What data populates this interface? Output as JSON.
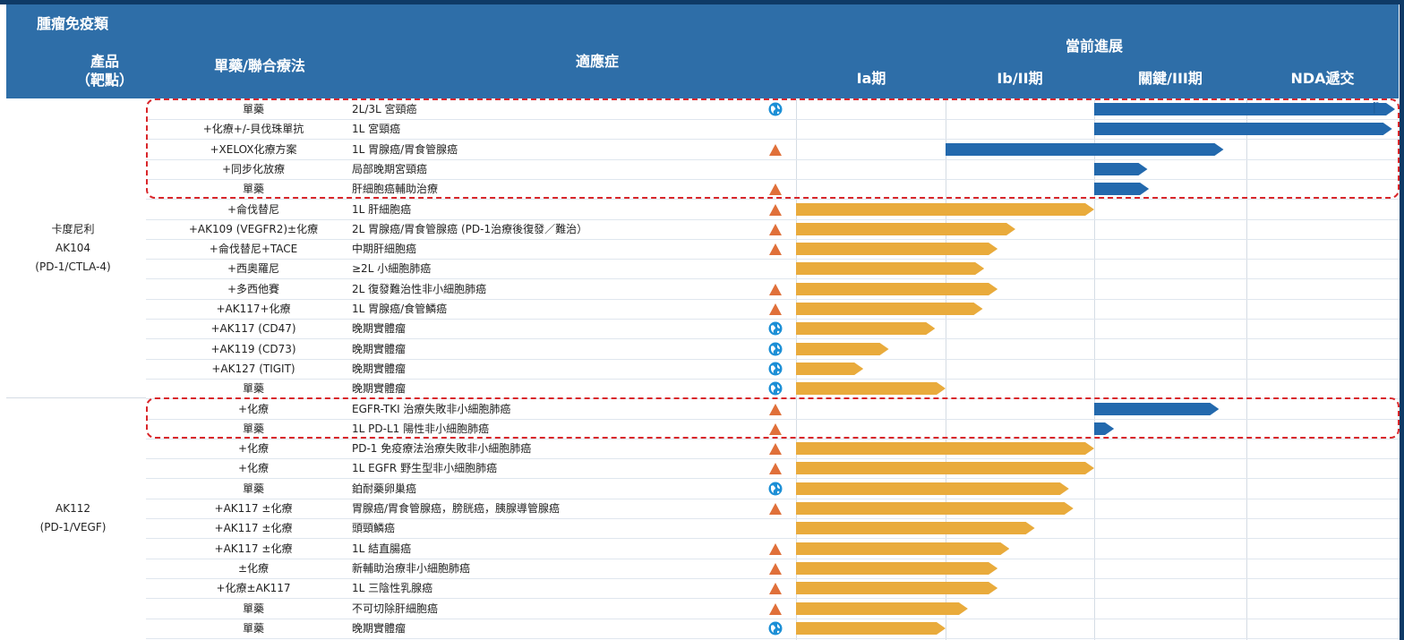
{
  "header": {
    "title": "腫瘤免疫類",
    "col_product": "產品",
    "col_product_sub": "（靶點）",
    "col_therapy": "單藥/聯合療法",
    "col_indication": "適應症",
    "col_progress": "當前進展",
    "phases": [
      "Ia期",
      "Ib/II期",
      "關鍵/III期",
      "NDA遞交"
    ]
  },
  "colors": {
    "header_bg": "#2e6ea8",
    "bar_blue": "#2369ad",
    "bar_gold": "#e9ab3c",
    "triangle": "#e0703a",
    "highlight": "#d9262a"
  },
  "products": [
    {
      "name": "卡度尼利",
      "code": "AK104",
      "target": "(PD-1/CTLA-4)"
    },
    {
      "name": "",
      "code": "AK112",
      "target": "(PD-1/VEGF)"
    }
  ],
  "rows": [
    {
      "therapy": "單藥",
      "indication": "2L/3L 宮頸癌",
      "icon": "globe-icon",
      "progress": 4.0,
      "color": "blue",
      "flag": true
    },
    {
      "therapy": "+化療+/-貝伐珠單抗",
      "indication": "1L 宮頸癌",
      "icon": "",
      "progress": 3.98,
      "color": "blue"
    },
    {
      "therapy": "+XELOX化療方案",
      "indication": "1L 胃腺癌/胃食管腺癌",
      "icon": "triangle-icon",
      "progress": 2.85,
      "color": "blue"
    },
    {
      "therapy": "+同步化放療",
      "indication": "局部晚期宮頸癌",
      "icon": "",
      "progress": 2.35,
      "color": "blue"
    },
    {
      "therapy": "單藥",
      "indication": "肝細胞癌輔助治療",
      "icon": "triangle-icon",
      "progress": 2.36,
      "color": "blue"
    },
    {
      "therapy": "+侖伐替尼",
      "indication": "1L 肝細胞癌",
      "icon": "triangle-icon",
      "progress": 2.0,
      "color": "gold"
    },
    {
      "therapy": "+AK109 (VEGFR2)±化療",
      "indication": "2L 胃腺癌/胃食管腺癌 (PD-1治療後復發／難治）",
      "icon": "triangle-icon",
      "progress": 1.47,
      "color": "gold"
    },
    {
      "therapy": "+侖伐替尼+TACE",
      "indication": "中期肝細胞癌",
      "icon": "triangle-icon",
      "progress": 1.35,
      "color": "gold"
    },
    {
      "therapy": "+西奧羅尼",
      "indication": "≥2L 小細胞肺癌",
      "icon": "",
      "progress": 1.26,
      "color": "gold"
    },
    {
      "therapy": "+多西他賽",
      "indication": "2L 復發難治性非小細胞肺癌",
      "icon": "triangle-icon",
      "progress": 1.35,
      "color": "gold"
    },
    {
      "therapy": "+AK117+化療",
      "indication": "1L 胃腺癌/食管鱗癌",
      "icon": "triangle-icon",
      "progress": 1.25,
      "color": "gold"
    },
    {
      "therapy": "+AK117 (CD47)",
      "indication": "晚期實體瘤",
      "icon": "globe-icon",
      "progress": 0.93,
      "color": "gold"
    },
    {
      "therapy": "+AK119 (CD73)",
      "indication": "晚期實體瘤",
      "icon": "globe-icon",
      "progress": 0.62,
      "color": "gold"
    },
    {
      "therapy": "+AK127 (TIGIT)",
      "indication": "晚期實體瘤",
      "icon": "globe-icon",
      "progress": 0.45,
      "color": "gold"
    },
    {
      "therapy": "單藥",
      "indication": "晚期實體瘤",
      "icon": "globe-icon",
      "progress": 1.0,
      "color": "gold"
    },
    {
      "therapy": "+化療",
      "indication": "EGFR-TKI 治療失敗非小細胞肺癌",
      "icon": "triangle-icon",
      "progress": 2.82,
      "color": "blue"
    },
    {
      "therapy": "單藥",
      "indication": "1L PD-L1 陽性非小細胞肺癌",
      "icon": "triangle-icon",
      "progress": 2.13,
      "color": "blue"
    },
    {
      "therapy": "+化療",
      "indication": "PD-1 免疫療法治療失敗非小細胞肺癌",
      "icon": "triangle-icon",
      "progress": 2.0,
      "color": "gold"
    },
    {
      "therapy": "+化療",
      "indication": "1L EGFR 野生型非小細胞肺癌",
      "icon": "triangle-icon",
      "progress": 2.0,
      "color": "gold"
    },
    {
      "therapy": "單藥",
      "indication": "鉑耐藥卵巢癌",
      "icon": "globe-icon",
      "progress": 1.83,
      "color": "gold"
    },
    {
      "therapy": "+AK117 ±化療",
      "indication": "胃腺癌/胃食管腺癌，膀胱癌，胰腺導管腺癌",
      "icon": "triangle-icon",
      "progress": 1.86,
      "color": "gold"
    },
    {
      "therapy": "+AK117 ±化療",
      "indication": "頭頸鱗癌",
      "icon": "",
      "progress": 1.6,
      "color": "gold"
    },
    {
      "therapy": "+AK117 ±化療",
      "indication": "1L 結直腸癌",
      "icon": "triangle-icon",
      "progress": 1.43,
      "color": "gold"
    },
    {
      "therapy": "±化療",
      "indication": "新輔助治療非小細胞肺癌",
      "icon": "triangle-icon",
      "progress": 1.35,
      "color": "gold"
    },
    {
      "therapy": "+化療±AK117",
      "indication": "1L 三陰性乳腺癌",
      "icon": "triangle-icon",
      "progress": 1.35,
      "color": "gold"
    },
    {
      "therapy": "單藥",
      "indication": "不可切除肝細胞癌",
      "icon": "triangle-icon",
      "progress": 1.15,
      "color": "gold"
    },
    {
      "therapy": "單藥",
      "indication": "晚期實體瘤",
      "icon": "globe-icon",
      "progress": 1.0,
      "color": "gold"
    }
  ]
}
